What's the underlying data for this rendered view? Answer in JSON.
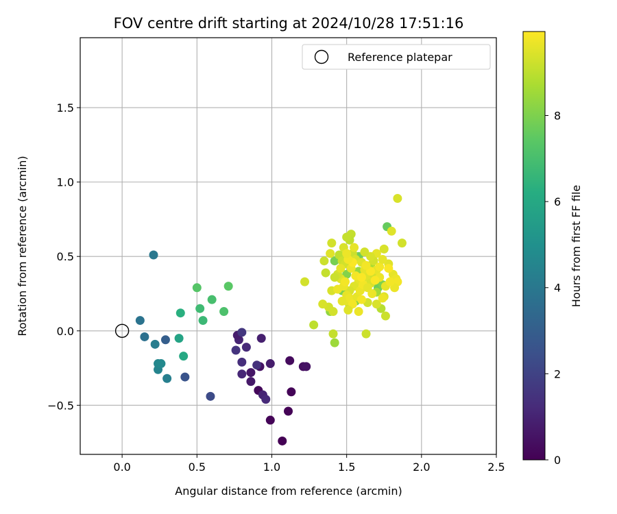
{
  "chart_data": {
    "type": "scatter",
    "title": "FOV centre drift starting at 2024/10/28 17:51:16",
    "xlabel": "Angular distance from reference (arcmin)",
    "ylabel": "Rotation from reference (arcmin)",
    "xlim": [
      -0.28,
      2.5
    ],
    "ylim": [
      -0.83,
      1.97
    ],
    "x_ticks": [
      {
        "value": 0.0,
        "label": "0.0"
      },
      {
        "value": 0.5,
        "label": "0.5"
      },
      {
        "value": 1.0,
        "label": "1.0"
      },
      {
        "value": 1.5,
        "label": "1.5"
      },
      {
        "value": 2.0,
        "label": "2.0"
      },
      {
        "value": 2.5,
        "label": "2.5"
      }
    ],
    "y_ticks": [
      {
        "value": -0.5,
        "label": "−0.5"
      },
      {
        "value": 0.0,
        "label": "0.0"
      },
      {
        "value": 0.5,
        "label": "0.5"
      },
      {
        "value": 1.0,
        "label": "1.0"
      },
      {
        "value": 1.5,
        "label": "1.5"
      }
    ],
    "grid": true,
    "legend": {
      "location": "upper right",
      "entries": [
        "Reference platepar"
      ]
    },
    "reference_point": {
      "x": 0.0,
      "y": 0.0,
      "label": "Reference platepar",
      "marker": "hollow circle"
    },
    "colorbar": {
      "label": "Hours from first FF file",
      "colormap": "viridis",
      "range": [
        0,
        9.95
      ],
      "ticks": [
        {
          "value": 0,
          "label": "0"
        },
        {
          "value": 2,
          "label": "2"
        },
        {
          "value": 4,
          "label": "4"
        },
        {
          "value": 6,
          "label": "6"
        },
        {
          "value": 8,
          "label": "8"
        }
      ]
    },
    "points": [
      {
        "x": 1.07,
        "y": -0.74,
        "t": 0.0
      },
      {
        "x": 0.99,
        "y": -0.6,
        "t": 0.1
      },
      {
        "x": 1.11,
        "y": -0.54,
        "t": 0.05
      },
      {
        "x": 1.13,
        "y": -0.41,
        "t": 0.1
      },
      {
        "x": 0.91,
        "y": -0.4,
        "t": 0.2
      },
      {
        "x": 1.12,
        "y": -0.2,
        "t": 0.3
      },
      {
        "x": 1.21,
        "y": -0.24,
        "t": 0.4
      },
      {
        "x": 1.23,
        "y": -0.24,
        "t": 0.5
      },
      {
        "x": 0.92,
        "y": -0.24,
        "t": 0.5
      },
      {
        "x": 0.86,
        "y": -0.28,
        "t": 0.6
      },
      {
        "x": 0.86,
        "y": -0.34,
        "t": 0.7
      },
      {
        "x": 0.99,
        "y": -0.22,
        "t": 0.8
      },
      {
        "x": 0.94,
        "y": -0.43,
        "t": 1.0
      },
      {
        "x": 0.96,
        "y": -0.46,
        "t": 1.2
      },
      {
        "x": 0.93,
        "y": -0.05,
        "t": 0.9
      },
      {
        "x": 0.8,
        "y": -0.29,
        "t": 1.1
      },
      {
        "x": 0.8,
        "y": -0.21,
        "t": 1.3
      },
      {
        "x": 0.9,
        "y": -0.23,
        "t": 1.4
      },
      {
        "x": 0.83,
        "y": -0.11,
        "t": 1.2
      },
      {
        "x": 0.76,
        "y": -0.13,
        "t": 1.5
      },
      {
        "x": 0.78,
        "y": -0.06,
        "t": 1.0
      },
      {
        "x": 0.77,
        "y": -0.03,
        "t": 0.8
      },
      {
        "x": 0.8,
        "y": -0.01,
        "t": 1.6
      },
      {
        "x": 0.59,
        "y": -0.44,
        "t": 2.3
      },
      {
        "x": 0.42,
        "y": -0.31,
        "t": 2.6
      },
      {
        "x": 0.29,
        "y": -0.06,
        "t": 3.0
      },
      {
        "x": 0.3,
        "y": -0.32,
        "t": 4.3
      },
      {
        "x": 0.24,
        "y": -0.26,
        "t": 4.5
      },
      {
        "x": 0.24,
        "y": -0.22,
        "t": 4.6
      },
      {
        "x": 0.26,
        "y": -0.22,
        "t": 4.7
      },
      {
        "x": 0.22,
        "y": -0.09,
        "t": 4.2
      },
      {
        "x": 0.15,
        "y": -0.04,
        "t": 3.7
      },
      {
        "x": 0.12,
        "y": 0.07,
        "t": 3.8
      },
      {
        "x": 0.21,
        "y": 0.51,
        "t": 4.0
      },
      {
        "x": 0.38,
        "y": -0.05,
        "t": 5.8
      },
      {
        "x": 0.41,
        "y": -0.17,
        "t": 6.0
      },
      {
        "x": 0.39,
        "y": 0.12,
        "t": 6.3
      },
      {
        "x": 0.54,
        "y": 0.07,
        "t": 6.7
      },
      {
        "x": 0.52,
        "y": 0.15,
        "t": 6.8
      },
      {
        "x": 0.6,
        "y": 0.21,
        "t": 7.0
      },
      {
        "x": 0.5,
        "y": 0.29,
        "t": 7.3
      },
      {
        "x": 0.68,
        "y": 0.13,
        "t": 7.1
      },
      {
        "x": 0.71,
        "y": 0.3,
        "t": 7.4
      },
      {
        "x": 1.77,
        "y": 0.7,
        "t": 7.6
      },
      {
        "x": 1.42,
        "y": 0.47,
        "t": 7.9
      },
      {
        "x": 1.58,
        "y": 0.5,
        "t": 7.8
      },
      {
        "x": 1.47,
        "y": 0.27,
        "t": 8.0
      },
      {
        "x": 1.5,
        "y": 0.38,
        "t": 8.1
      },
      {
        "x": 1.56,
        "y": 0.2,
        "t": 8.2
      },
      {
        "x": 1.71,
        "y": 0.29,
        "t": 7.7
      },
      {
        "x": 1.74,
        "y": 0.31,
        "t": 8.0
      },
      {
        "x": 1.39,
        "y": 0.13,
        "t": 8.3
      },
      {
        "x": 1.42,
        "y": -0.08,
        "t": 8.5
      },
      {
        "x": 1.58,
        "y": 0.4,
        "t": 8.4
      },
      {
        "x": 1.7,
        "y": 0.26,
        "t": 8.6
      },
      {
        "x": 1.66,
        "y": 0.44,
        "t": 8.7
      },
      {
        "x": 1.52,
        "y": 0.17,
        "t": 8.8
      },
      {
        "x": 1.73,
        "y": 0.15,
        "t": 8.9
      },
      {
        "x": 1.76,
        "y": 0.1,
        "t": 9.2
      },
      {
        "x": 1.84,
        "y": 0.89,
        "t": 9.4
      },
      {
        "x": 1.87,
        "y": 0.59,
        "t": 9.3
      },
      {
        "x": 1.8,
        "y": 0.67,
        "t": 9.5
      },
      {
        "x": 1.75,
        "y": 0.55,
        "t": 9.4
      },
      {
        "x": 1.7,
        "y": 0.52,
        "t": 9.6
      },
      {
        "x": 1.68,
        "y": 0.47,
        "t": 9.3
      },
      {
        "x": 1.78,
        "y": 0.45,
        "t": 9.5
      },
      {
        "x": 1.81,
        "y": 0.38,
        "t": 9.6
      },
      {
        "x": 1.83,
        "y": 0.35,
        "t": 9.7
      },
      {
        "x": 1.84,
        "y": 0.33,
        "t": 9.8
      },
      {
        "x": 1.82,
        "y": 0.29,
        "t": 9.7
      },
      {
        "x": 1.76,
        "y": 0.3,
        "t": 9.6
      },
      {
        "x": 1.75,
        "y": 0.23,
        "t": 9.5
      },
      {
        "x": 1.7,
        "y": 0.18,
        "t": 9.4
      },
      {
        "x": 1.64,
        "y": 0.19,
        "t": 9.3
      },
      {
        "x": 1.63,
        "y": -0.02,
        "t": 9.2
      },
      {
        "x": 1.53,
        "y": 0.65,
        "t": 9.1
      },
      {
        "x": 1.52,
        "y": 0.61,
        "t": 9.0
      },
      {
        "x": 1.5,
        "y": 0.63,
        "t": 9.1
      },
      {
        "x": 1.45,
        "y": 0.51,
        "t": 9.0
      },
      {
        "x": 1.47,
        "y": 0.47,
        "t": 9.2
      },
      {
        "x": 1.49,
        "y": 0.45,
        "t": 9.3
      },
      {
        "x": 1.54,
        "y": 0.52,
        "t": 9.2
      },
      {
        "x": 1.56,
        "y": 0.48,
        "t": 9.4
      },
      {
        "x": 1.6,
        "y": 0.46,
        "t": 9.5
      },
      {
        "x": 1.62,
        "y": 0.41,
        "t": 9.6
      },
      {
        "x": 1.64,
        "y": 0.36,
        "t": 9.5
      },
      {
        "x": 1.66,
        "y": 0.32,
        "t": 9.4
      },
      {
        "x": 1.68,
        "y": 0.38,
        "t": 9.3
      },
      {
        "x": 1.7,
        "y": 0.41,
        "t": 9.6
      },
      {
        "x": 1.72,
        "y": 0.36,
        "t": 9.7
      },
      {
        "x": 1.58,
        "y": 0.33,
        "t": 9.6
      },
      {
        "x": 1.55,
        "y": 0.3,
        "t": 9.5
      },
      {
        "x": 1.52,
        "y": 0.27,
        "t": 9.4
      },
      {
        "x": 1.5,
        "y": 0.24,
        "t": 9.6
      },
      {
        "x": 1.48,
        "y": 0.3,
        "t": 9.7
      },
      {
        "x": 1.46,
        "y": 0.35,
        "t": 9.5
      },
      {
        "x": 1.44,
        "y": 0.38,
        "t": 9.3
      },
      {
        "x": 1.42,
        "y": 0.36,
        "t": 9.2
      },
      {
        "x": 1.4,
        "y": 0.27,
        "t": 9.4
      },
      {
        "x": 1.38,
        "y": 0.16,
        "t": 9.3
      },
      {
        "x": 1.36,
        "y": 0.39,
        "t": 9.1
      },
      {
        "x": 1.35,
        "y": 0.47,
        "t": 9.2
      },
      {
        "x": 1.4,
        "y": 0.59,
        "t": 9.3
      },
      {
        "x": 1.39,
        "y": 0.52,
        "t": 9.5
      },
      {
        "x": 1.34,
        "y": 0.18,
        "t": 9.4
      },
      {
        "x": 1.41,
        "y": 0.13,
        "t": 9.3
      },
      {
        "x": 1.41,
        "y": -0.02,
        "t": 9.1
      },
      {
        "x": 1.28,
        "y": 0.04,
        "t": 9.0
      },
      {
        "x": 1.22,
        "y": 0.33,
        "t": 9.3
      },
      {
        "x": 1.5,
        "y": 0.2,
        "t": 9.6
      },
      {
        "x": 1.52,
        "y": 0.22,
        "t": 9.7
      },
      {
        "x": 1.54,
        "y": 0.18,
        "t": 9.8
      },
      {
        "x": 1.57,
        "y": 0.23,
        "t": 9.6
      },
      {
        "x": 1.59,
        "y": 0.27,
        "t": 9.7
      },
      {
        "x": 1.61,
        "y": 0.31,
        "t": 9.8
      },
      {
        "x": 1.64,
        "y": 0.29,
        "t": 9.6
      },
      {
        "x": 1.67,
        "y": 0.25,
        "t": 9.7
      },
      {
        "x": 1.69,
        "y": 0.34,
        "t": 9.9
      },
      {
        "x": 1.72,
        "y": 0.43,
        "t": 9.8
      },
      {
        "x": 1.74,
        "y": 0.48,
        "t": 9.6
      },
      {
        "x": 1.78,
        "y": 0.42,
        "t": 9.9
      },
      {
        "x": 1.79,
        "y": 0.33,
        "t": 9.8
      },
      {
        "x": 1.74,
        "y": 0.22,
        "t": 9.7
      },
      {
        "x": 1.66,
        "y": 0.5,
        "t": 9.4
      },
      {
        "x": 1.62,
        "y": 0.53,
        "t": 9.3
      },
      {
        "x": 1.48,
        "y": 0.56,
        "t": 9.4
      },
      {
        "x": 1.46,
        "y": 0.42,
        "t": 9.6
      },
      {
        "x": 1.53,
        "y": 0.42,
        "t": 9.7
      },
      {
        "x": 1.56,
        "y": 0.37,
        "t": 9.8
      },
      {
        "x": 1.6,
        "y": 0.36,
        "t": 9.9
      },
      {
        "x": 1.49,
        "y": 0.33,
        "t": 9.8
      },
      {
        "x": 1.44,
        "y": 0.28,
        "t": 9.7
      },
      {
        "x": 1.47,
        "y": 0.2,
        "t": 9.6
      },
      {
        "x": 1.51,
        "y": 0.14,
        "t": 9.5
      },
      {
        "x": 1.58,
        "y": 0.13,
        "t": 9.7
      },
      {
        "x": 1.6,
        "y": 0.21,
        "t": 9.8
      },
      {
        "x": 1.66,
        "y": 0.4,
        "t": 9.9
      },
      {
        "x": 1.63,
        "y": 0.44,
        "t": 9.8
      },
      {
        "x": 1.54,
        "y": 0.46,
        "t": 9.9
      },
      {
        "x": 1.51,
        "y": 0.48,
        "t": 9.8
      },
      {
        "x": 1.5,
        "y": 0.52,
        "t": 9.7
      },
      {
        "x": 1.55,
        "y": 0.56,
        "t": 9.6
      }
    ]
  }
}
